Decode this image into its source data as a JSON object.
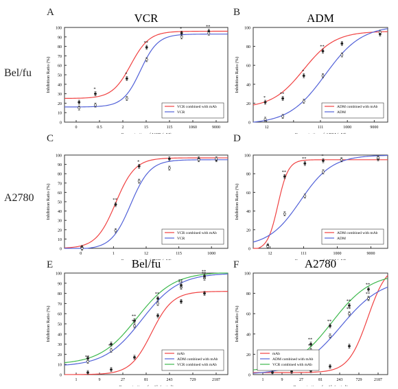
{
  "figure": {
    "row_labels": [
      "Bel/fu",
      "A2780"
    ],
    "colors": {
      "red": "#f04040",
      "blue": "#5060d8",
      "green": "#3cb84c",
      "axis": "#333333",
      "marker": "#222222"
    }
  },
  "chart_data": [
    {
      "panel": "A",
      "type": "line",
      "title": "VCR",
      "xlabel": "Concentration of VCR (nM)",
      "ylabel": "Inhibition Ratio (%)",
      "xscale": "log",
      "xlim": [
        0.15,
        9000
      ],
      "ylim": [
        0,
        100
      ],
      "xticks": [
        "0",
        "0.5",
        "2",
        "15",
        "115",
        "1060",
        "9000"
      ],
      "yticks": [
        "0",
        "10",
        "20",
        "30",
        "40",
        "50",
        "60",
        "70",
        "80",
        "90",
        "100"
      ],
      "legend": "bottom-right",
      "series": [
        {
          "name": "VCR combined with mAb",
          "color": "#f04040",
          "points": [
            {
              "x": 0.4,
              "y": 21,
              "label": ""
            },
            {
              "x": 1.2,
              "y": 30,
              "label": "*"
            },
            {
              "x": 10,
              "y": 46,
              "label": "*"
            },
            {
              "x": 38,
              "y": 79,
              "label": "**"
            },
            {
              "x": 400,
              "y": 94,
              "label": "*"
            },
            {
              "x": 2500,
              "y": 96,
              "label": "**"
            }
          ],
          "curve": {
            "bottom": 25,
            "top": 96,
            "ec50": 13,
            "hill": 1.6
          }
        },
        {
          "name": "VCR",
          "color": "#5060d8",
          "points": [
            {
              "x": 0.4,
              "y": 15,
              "label": ""
            },
            {
              "x": 1.2,
              "y": 18,
              "label": ""
            },
            {
              "x": 10,
              "y": 25,
              "label": ""
            },
            {
              "x": 38,
              "y": 66,
              "label": ""
            },
            {
              "x": 400,
              "y": 90,
              "label": ""
            },
            {
              "x": 2500,
              "y": 94,
              "label": ""
            }
          ],
          "curve": {
            "bottom": 16,
            "top": 93,
            "ec50": 25,
            "hill": 1.7
          }
        }
      ]
    },
    {
      "panel": "B",
      "type": "line",
      "title": "ADM",
      "xlabel": "Concentration of ADM (nM)",
      "ylabel": "Inhibition Ratio (%)",
      "xscale": "log",
      "xlim": [
        6,
        14000
      ],
      "ylim": [
        0,
        100
      ],
      "xticks": [
        "12",
        "",
        "111",
        "1000",
        "9000"
      ],
      "yticks": [
        "0",
        "20",
        "40",
        "60",
        "80",
        "100"
      ],
      "legend": "bottom-right",
      "series": [
        {
          "name": "ADM combined with mAb",
          "color": "#f04040",
          "points": [
            {
              "x": 12,
              "y": 21,
              "label": "*"
            },
            {
              "x": 33,
              "y": 25,
              "label": "**"
            },
            {
              "x": 111,
              "y": 49,
              "label": "*"
            },
            {
              "x": 333,
              "y": 75,
              "label": "**"
            },
            {
              "x": 1000,
              "y": 83,
              "label": ""
            },
            {
              "x": 9000,
              "y": 93,
              "label": ""
            }
          ],
          "curve": {
            "bottom": 15,
            "top": 96,
            "ec50": 110,
            "hill": 1.1
          }
        },
        {
          "name": "ADM",
          "color": "#5060d8",
          "points": [
            {
              "x": 12,
              "y": 3,
              "label": ""
            },
            {
              "x": 33,
              "y": 6,
              "label": ""
            },
            {
              "x": 111,
              "y": 22,
              "label": ""
            },
            {
              "x": 333,
              "y": 49,
              "label": ""
            },
            {
              "x": 1000,
              "y": 71,
              "label": ""
            },
            {
              "x": 9000,
              "y": 95,
              "label": ""
            }
          ],
          "curve": {
            "bottom": -2,
            "top": 102,
            "ec50": 380,
            "hill": 0.95
          }
        }
      ]
    },
    {
      "panel": "C",
      "type": "line",
      "title": "",
      "xlabel": "Concentration of VCR (nM)",
      "ylabel": "Inhibition Ratio (%)",
      "xscale": "log",
      "xlim": [
        0.03,
        2200
      ],
      "ylim": [
        0,
        100
      ],
      "xticks": [
        "0",
        "1",
        "12",
        "115",
        "1000"
      ],
      "yticks": [
        "0",
        "10",
        "20",
        "30",
        "40",
        "50",
        "60",
        "70",
        "80",
        "90",
        "100"
      ],
      "legend": "bottom-right",
      "series": [
        {
          "name": "VCR combined with mAb",
          "color": "#f04040",
          "points": [
            {
              "x": 0.1,
              "y": 1,
              "label": ""
            },
            {
              "x": 1.0,
              "y": 47,
              "label": "**"
            },
            {
              "x": 5,
              "y": 88,
              "label": "*"
            },
            {
              "x": 40,
              "y": 96,
              "label": ""
            },
            {
              "x": 300,
              "y": 96,
              "label": ""
            },
            {
              "x": 1000,
              "y": 95,
              "label": ""
            }
          ],
          "curve": {
            "bottom": 0,
            "top": 97,
            "ec50": 1.0,
            "hill": 1.5
          }
        },
        {
          "name": "VCR",
          "color": "#5060d8",
          "points": [
            {
              "x": 0.1,
              "y": 0,
              "label": ""
            },
            {
              "x": 1.0,
              "y": 19,
              "label": ""
            },
            {
              "x": 5,
              "y": 72,
              "label": ""
            },
            {
              "x": 40,
              "y": 86,
              "label": ""
            },
            {
              "x": 300,
              "y": 95,
              "label": ""
            },
            {
              "x": 1000,
              "y": 96,
              "label": ""
            }
          ],
          "curve": {
            "bottom": -1,
            "top": 95,
            "ec50": 2.8,
            "hill": 1.5
          }
        }
      ]
    },
    {
      "panel": "D",
      "type": "line",
      "title": "",
      "xlabel": "Concentration of ADM (nM)",
      "ylabel": "Inhibition Ratio (%)",
      "xscale": "log",
      "xlim": [
        5,
        16000
      ],
      "ylim": [
        0,
        100
      ],
      "xticks": [
        "12",
        "111",
        "1000",
        "9000"
      ],
      "yticks": [
        "0",
        "20",
        "40",
        "60",
        "80",
        "100"
      ],
      "legend": "bottom-right",
      "series": [
        {
          "name": "ADM combined with mAb",
          "color": "#f04040",
          "points": [
            {
              "x": 12,
              "y": 3,
              "label": ""
            },
            {
              "x": 33,
              "y": 77,
              "label": "**"
            },
            {
              "x": 111,
              "y": 91,
              "label": "**"
            },
            {
              "x": 333,
              "y": 94,
              "label": "*"
            },
            {
              "x": 1000,
              "y": 95,
              "label": ""
            },
            {
              "x": 9000,
              "y": 96,
              "label": ""
            }
          ],
          "curve": {
            "bottom": -2,
            "top": 95,
            "ec50": 22,
            "hill": 3.2
          }
        },
        {
          "name": "ADM",
          "color": "#5060d8",
          "points": [
            {
              "x": 12,
              "y": 2,
              "label": ""
            },
            {
              "x": 33,
              "y": 37,
              "label": ""
            },
            {
              "x": 111,
              "y": 56,
              "label": ""
            },
            {
              "x": 333,
              "y": 82,
              "label": ""
            },
            {
              "x": 1000,
              "y": 95,
              "label": ""
            },
            {
              "x": 9000,
              "y": 97,
              "label": ""
            }
          ],
          "curve": {
            "bottom": 2,
            "top": 100,
            "ec50": 85,
            "hill": 1.05
          }
        }
      ]
    },
    {
      "panel": "E",
      "type": "line",
      "title": "Bel/fu",
      "xlabel": "Concentration of mAb (μg/ml)",
      "ylabel": "Inhibition Ratio (%)",
      "xscale": "log",
      "xlim": [
        1,
        2187
      ],
      "ylim": [
        0,
        100
      ],
      "xticks": [
        "1",
        "9",
        "27",
        "81",
        "243",
        "729",
        "2187"
      ],
      "yticks": [
        "0",
        "10",
        "20",
        "30",
        "40",
        "50",
        "60",
        "70",
        "80",
        "90",
        "100"
      ],
      "legend": "bottom-right",
      "series": [
        {
          "name": "mAb",
          "color": "#f04040",
          "points": [
            {
              "x": 3,
              "y": 2,
              "label": ""
            },
            {
              "x": 9,
              "y": 5,
              "label": ""
            },
            {
              "x": 27,
              "y": 17,
              "label": ""
            },
            {
              "x": 81,
              "y": 58,
              "label": ""
            },
            {
              "x": 243,
              "y": 72,
              "label": ""
            },
            {
              "x": 729,
              "y": 80,
              "label": ""
            }
          ],
          "curve": {
            "bottom": 0,
            "top": 82,
            "ec50": 60,
            "hill": 2.0
          }
        },
        {
          "name": "ADM combined with mAb",
          "color": "#5060d8",
          "points": [
            {
              "x": 3,
              "y": 13,
              "label": "**"
            },
            {
              "x": 9,
              "y": 24,
              "label": "**"
            },
            {
              "x": 27,
              "y": 48,
              "label": "**"
            },
            {
              "x": 81,
              "y": 70,
              "label": ""
            },
            {
              "x": 243,
              "y": 86,
              "label": "**"
            },
            {
              "x": 729,
              "y": 95,
              "label": "**"
            }
          ],
          "curve": {
            "bottom": 8,
            "top": 100,
            "ec50": 38,
            "hill": 1.15
          }
        },
        {
          "name": "VCR combined with mAb",
          "color": "#3cb84c",
          "points": [
            {
              "x": 3,
              "y": 16,
              "label": ""
            },
            {
              "x": 9,
              "y": 30,
              "label": ""
            },
            {
              "x": 27,
              "y": 53,
              "label": "**"
            },
            {
              "x": 81,
              "y": 75,
              "label": "**"
            },
            {
              "x": 243,
              "y": 88,
              "label": "**"
            },
            {
              "x": 729,
              "y": 97,
              "label": "**"
            }
          ],
          "curve": {
            "bottom": 10,
            "top": 101,
            "ec50": 30,
            "hill": 1.15
          }
        }
      ]
    },
    {
      "panel": "F",
      "type": "line",
      "title": "A2780",
      "xlabel": "Concentration of mAb (μg/ml)",
      "ylabel": "Inhibition Ratio (%)",
      "xscale": "log",
      "xlim": [
        1,
        2187
      ],
      "ylim": [
        0,
        100
      ],
      "xticks": [
        "1",
        "9",
        "27",
        "81",
        "243",
        "729",
        "2187"
      ],
      "yticks": [
        "0",
        "20",
        "40",
        "60",
        "80",
        "100"
      ],
      "legend": "bottom-left",
      "series": [
        {
          "name": "mAb",
          "color": "#f04040",
          "points": [
            {
              "x": 3,
              "y": 2,
              "label": ""
            },
            {
              "x": 9,
              "y": 3,
              "label": ""
            },
            {
              "x": 27,
              "y": 4,
              "label": ""
            },
            {
              "x": 81,
              "y": 8,
              "label": ""
            },
            {
              "x": 243,
              "y": 28,
              "label": ""
            },
            {
              "x": 729,
              "y": 75,
              "label": ""
            }
          ],
          "curve": {
            "bottom": 2,
            "top": 110,
            "ec50": 700,
            "hill": 1.8
          }
        },
        {
          "name": "ADM combined with mAb",
          "color": "#5060d8",
          "points": [
            {
              "x": 3,
              "y": 5,
              "label": ""
            },
            {
              "x": 9,
              "y": 13,
              "label": "**"
            },
            {
              "x": 27,
              "y": 24,
              "label": "**"
            },
            {
              "x": 81,
              "y": 38,
              "label": ""
            },
            {
              "x": 243,
              "y": 60,
              "label": "**"
            },
            {
              "x": 729,
              "y": 75,
              "label": "**"
            }
          ],
          "curve": {
            "bottom": 0,
            "top": 95,
            "ec50": 150,
            "hill": 0.85
          }
        },
        {
          "name": "VCR combined with mAb",
          "color": "#3cb84c",
          "points": [
            {
              "x": 3,
              "y": 10,
              "label": "**"
            },
            {
              "x": 9,
              "y": 17,
              "label": "**"
            },
            {
              "x": 27,
              "y": 30,
              "label": "**"
            },
            {
              "x": 81,
              "y": 48,
              "label": "**"
            },
            {
              "x": 243,
              "y": 68,
              "label": "**"
            },
            {
              "x": 729,
              "y": 84,
              "label": "**"
            }
          ],
          "curve": {
            "bottom": 3,
            "top": 100,
            "ec50": 90,
            "hill": 0.9
          }
        }
      ]
    }
  ]
}
